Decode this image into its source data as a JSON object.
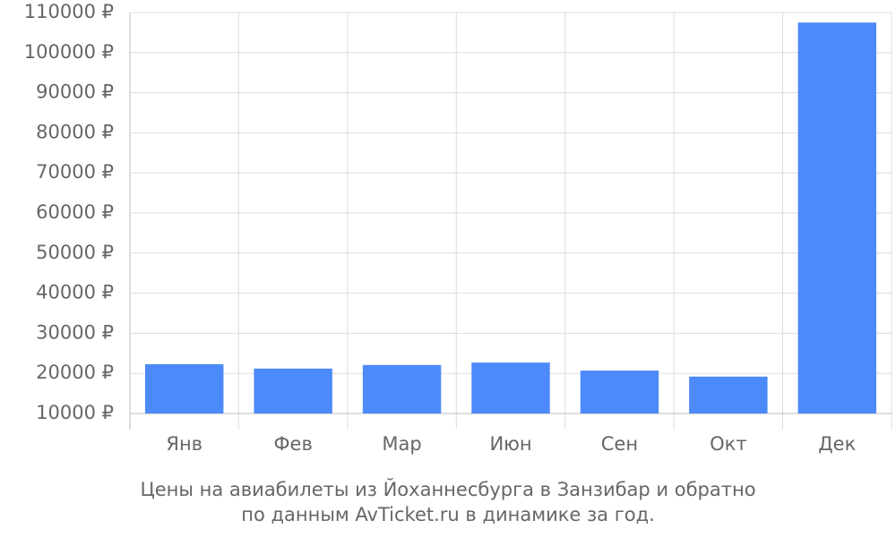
{
  "chart_data": {
    "type": "bar",
    "caption": [
      "Цены на авиабилеты из Йоханнесбурга в Занзибар и обратно",
      "по данным AvTicket.ru в динамике за год."
    ],
    "categories": [
      "Янв",
      "Фев",
      "Мар",
      "Июн",
      "Сен",
      "Окт",
      "Дек"
    ],
    "values": [
      22300,
      21200,
      22100,
      22700,
      20700,
      19200,
      107500
    ],
    "color": "#4d8af9",
    "ylim": [
      10000,
      110000
    ],
    "yticks": [
      {
        "value": 10000,
        "label": "10000 ₽"
      },
      {
        "value": 20000,
        "label": "20000 ₽"
      },
      {
        "value": 30000,
        "label": "30000 ₽"
      },
      {
        "value": 40000,
        "label": "40000 ₽"
      },
      {
        "value": 50000,
        "label": "50000 ₽"
      },
      {
        "value": 60000,
        "label": "60000 ₽"
      },
      {
        "value": 70000,
        "label": "70000 ₽"
      },
      {
        "value": 80000,
        "label": "80000 ₽"
      },
      {
        "value": 90000,
        "label": "90000 ₽"
      },
      {
        "value": 100000,
        "label": "100000 ₽"
      },
      {
        "value": 110000,
        "label": "110000 ₽"
      }
    ],
    "grid": true
  }
}
